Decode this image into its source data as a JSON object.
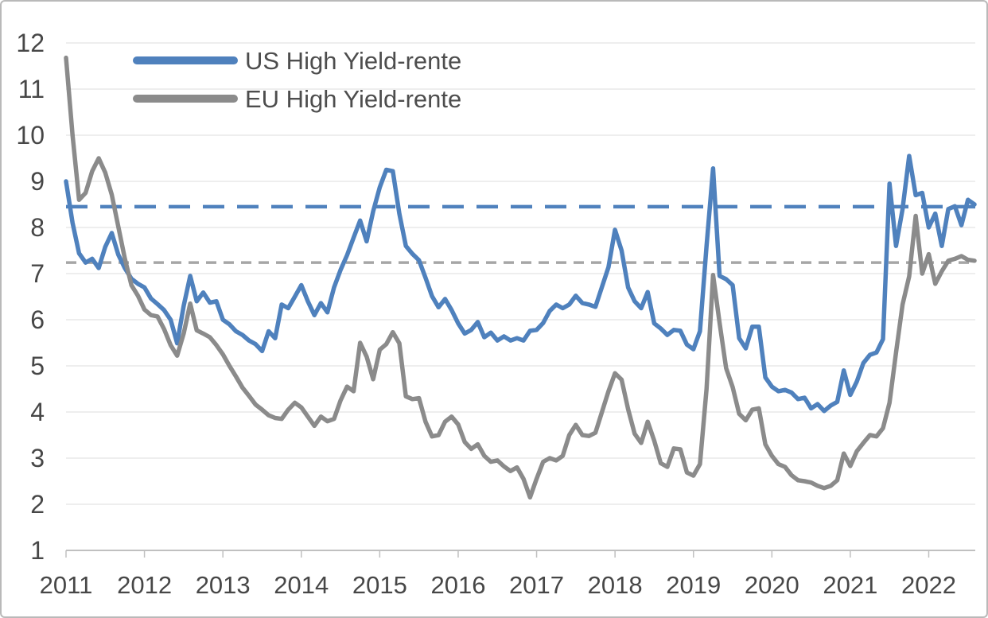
{
  "page": {
    "background": "#ffffff",
    "border_color": "#b9b9b9"
  },
  "chart_data": {
    "type": "line",
    "title": "",
    "xlabel": "",
    "ylabel": "",
    "x_start": "2011-01",
    "x_frequency": "monthly",
    "x_tick_labels": [
      "2011",
      "2012",
      "2013",
      "2014",
      "2015",
      "2016",
      "2017",
      "2018",
      "2019",
      "2020",
      "2021",
      "2022"
    ],
    "y_tick_labels": [
      "1",
      "2",
      "3",
      "4",
      "5",
      "6",
      "7",
      "8",
      "9",
      "10",
      "11",
      "12"
    ],
    "ylim": [
      1,
      12
    ],
    "grid": "horizontal",
    "legend_position": "top-left-inside",
    "axes_style": {
      "grid_color": "#e9e9e9",
      "axis_line_color": "#c0c0c0",
      "tick_color": "#c0c0c0",
      "label_color": "#474747"
    },
    "series": [
      {
        "name": "US High Yield-rente",
        "color": "#4F81BD",
        "values": [
          9.0,
          8.1,
          7.44,
          7.24,
          7.32,
          7.12,
          7.58,
          7.88,
          7.41,
          7.12,
          6.89,
          6.78,
          6.7,
          6.46,
          6.34,
          6.21,
          6.0,
          5.49,
          6.3,
          6.95,
          6.4,
          6.59,
          6.37,
          6.4,
          6.0,
          5.9,
          5.75,
          5.67,
          5.55,
          5.47,
          5.32,
          5.75,
          5.6,
          6.33,
          6.25,
          6.5,
          6.75,
          6.4,
          6.1,
          6.36,
          6.16,
          6.7,
          7.08,
          7.4,
          7.78,
          8.15,
          7.7,
          8.35,
          8.87,
          9.25,
          9.22,
          8.3,
          7.6,
          7.43,
          7.29,
          6.91,
          6.51,
          6.27,
          6.45,
          6.21,
          5.92,
          5.7,
          5.78,
          5.95,
          5.62,
          5.72,
          5.55,
          5.64,
          5.55,
          5.6,
          5.55,
          5.76,
          5.78,
          5.93,
          6.19,
          6.33,
          6.25,
          6.33,
          6.52,
          6.36,
          6.33,
          6.28,
          6.71,
          7.14,
          7.95,
          7.5,
          6.7,
          6.4,
          6.25,
          6.6,
          5.92,
          5.81,
          5.67,
          5.78,
          5.76,
          5.46,
          5.36,
          5.75,
          7.6,
          9.28,
          6.95,
          6.88,
          6.75,
          5.6,
          5.38,
          5.85,
          5.85,
          4.75,
          4.55,
          4.45,
          4.48,
          4.42,
          4.28,
          4.31,
          4.08,
          4.17,
          4.02,
          4.14,
          4.22,
          4.9,
          4.37,
          4.66,
          5.06,
          5.24,
          5.29,
          5.58,
          8.95,
          7.6,
          8.4,
          9.55,
          8.7,
          8.75,
          8.0,
          8.3,
          7.6,
          8.4,
          8.46,
          8.05,
          8.6,
          8.5
        ]
      },
      {
        "name": "EU High Yield-rente",
        "color": "#8B8B8B",
        "values": [
          11.68,
          10.0,
          8.6,
          8.75,
          9.22,
          9.5,
          9.19,
          8.71,
          8.02,
          7.33,
          6.75,
          6.52,
          6.22,
          6.1,
          6.07,
          5.8,
          5.45,
          5.22,
          5.7,
          6.35,
          5.77,
          5.7,
          5.62,
          5.45,
          5.25,
          5.0,
          4.77,
          4.53,
          4.35,
          4.16,
          4.05,
          3.93,
          3.87,
          3.85,
          4.05,
          4.2,
          4.1,
          3.9,
          3.7,
          3.9,
          3.8,
          3.85,
          4.25,
          4.55,
          4.45,
          5.5,
          5.2,
          4.71,
          5.35,
          5.47,
          5.73,
          5.49,
          4.34,
          4.28,
          4.3,
          3.79,
          3.47,
          3.5,
          3.79,
          3.9,
          3.73,
          3.35,
          3.2,
          3.3,
          3.05,
          2.92,
          2.95,
          2.82,
          2.72,
          2.8,
          2.55,
          2.15,
          2.55,
          2.92,
          3.0,
          2.95,
          3.05,
          3.5,
          3.72,
          3.5,
          3.48,
          3.55,
          4.0,
          4.45,
          4.84,
          4.7,
          4.06,
          3.53,
          3.33,
          3.79,
          3.38,
          2.89,
          2.81,
          3.21,
          3.19,
          2.69,
          2.62,
          2.87,
          4.5,
          6.97,
          5.93,
          4.95,
          4.54,
          3.96,
          3.82,
          4.05,
          4.08,
          3.3,
          3.05,
          2.87,
          2.81,
          2.63,
          2.52,
          2.5,
          2.47,
          2.4,
          2.35,
          2.4,
          2.52,
          3.1,
          2.83,
          3.15,
          3.33,
          3.5,
          3.47,
          3.65,
          4.2,
          5.29,
          6.33,
          6.94,
          8.25,
          7.0,
          7.42,
          6.78,
          7.05,
          7.28,
          7.32,
          7.38,
          7.3,
          7.28
        ]
      }
    ],
    "reference_lines": [
      {
        "series": "US High Yield-rente",
        "value": 8.45,
        "style": "dashed",
        "color": "#4F81BD"
      },
      {
        "series": "EU High Yield-rente",
        "value": 7.24,
        "style": "dashed",
        "color": "#A6A6A6"
      }
    ]
  },
  "legend": {
    "items": [
      {
        "label": "US High Yield-rente",
        "color": "#4F81BD"
      },
      {
        "label": "EU High Yield-rente",
        "color": "#8B8B8B"
      }
    ]
  }
}
